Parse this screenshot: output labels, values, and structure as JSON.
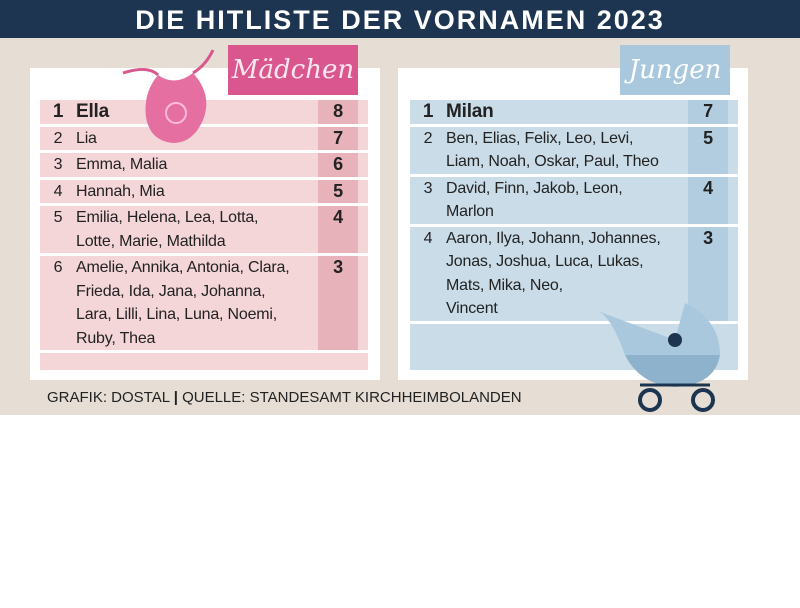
{
  "header": {
    "title": "DIE HITLISTE DER VORNAMEN 2023"
  },
  "girls": {
    "label": "Mädchen",
    "rows": [
      {
        "rank": 1,
        "names": [
          "Ella"
        ],
        "count": 8
      },
      {
        "rank": 2,
        "names": [
          "Lia"
        ],
        "count": 7
      },
      {
        "rank": 3,
        "names": [
          "Emma, Malia"
        ],
        "count": 6
      },
      {
        "rank": 4,
        "names": [
          "Hannah, Mia"
        ],
        "count": 5
      },
      {
        "rank": 5,
        "names": [
          "Emilia, Helena, Lea, Lotta,",
          "Lotte, Marie, Mathilda"
        ],
        "count": 4
      },
      {
        "rank": 6,
        "names": [
          "Amelie, Annika, Antonia, Clara,",
          "Frieda, Ida, Jana, Johanna,",
          "Lara, Lilli, Lina, Luna, Noemi,",
          "Ruby, Thea"
        ],
        "count": 3
      }
    ]
  },
  "boys": {
    "label": "Jungen",
    "rows": [
      {
        "rank": 1,
        "names": [
          "Milan"
        ],
        "count": 7
      },
      {
        "rank": 2,
        "names": [
          "Ben, Elias, Felix, Leo, Levi,",
          "Liam, Noah, Oskar, Paul, Theo"
        ],
        "count": 5
      },
      {
        "rank": 3,
        "names": [
          "David, Finn, Jakob, Leon,",
          "Marlon"
        ],
        "count": 4
      },
      {
        "rank": 4,
        "names": [
          "Aaron, Ilya, Johann, Johannes,",
          "Jonas, Joshua, Luca, Lukas,",
          "Mats, Mika, Neo,",
          "Vincent"
        ],
        "count": 3
      }
    ]
  },
  "footer": {
    "credit": "GRAFIK: DOSTAL",
    "source": "QUELLE: STANDESAMT KIRCHHEIMBOLANDEN"
  }
}
